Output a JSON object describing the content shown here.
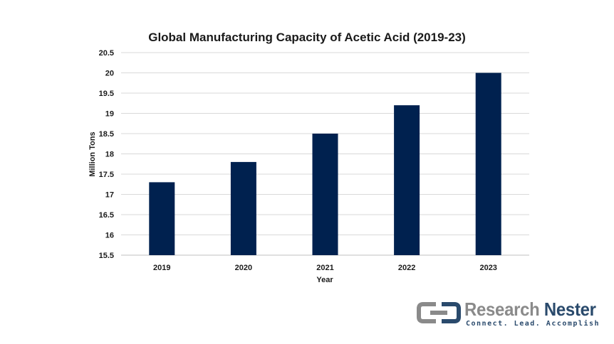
{
  "chart_data": {
    "type": "bar",
    "title": "Global Manufacturing Capacity of Acetic Acid (2019-23)",
    "xlabel": "Year",
    "ylabel": "Million Tons",
    "categories": [
      "2019",
      "2020",
      "2021",
      "2022",
      "2023"
    ],
    "values": [
      17.3,
      17.8,
      18.5,
      19.2,
      20.0
    ],
    "ylim": [
      15.5,
      20.5
    ],
    "yticks": [
      "15.5",
      "16",
      "16.5",
      "17",
      "17.5",
      "18",
      "18.5",
      "19",
      "19.5",
      "20",
      "20.5"
    ],
    "grid": true,
    "legend": "none",
    "bar_color": "#00214f"
  },
  "logo": {
    "name_part1": "Research",
    "name_part2": "Nester",
    "tagline": "Connect. Lead. Accomplish"
  }
}
